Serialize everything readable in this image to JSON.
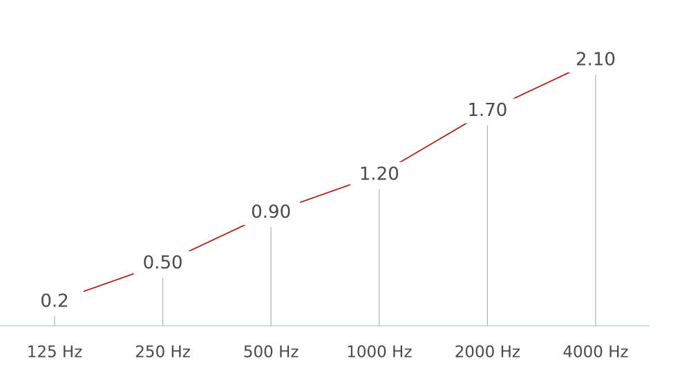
{
  "chart_data": {
    "type": "line",
    "categories": [
      "125 Hz",
      "250 Hz",
      "500 Hz",
      "1000 Hz",
      "2000 Hz",
      "4000 Hz"
    ],
    "series": [
      {
        "color": "#a8231c",
        "values": [
          0.2,
          0.5,
          0.9,
          1.2,
          1.7,
          2.1
        ],
        "value_labels": [
          "0.2",
          "0.50",
          "0.90",
          "1.20",
          "1.70",
          "2.10"
        ]
      }
    ]
  }
}
